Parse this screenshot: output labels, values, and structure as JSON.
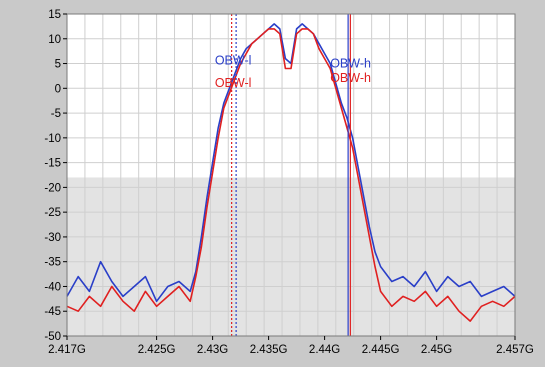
{
  "chart_data": {
    "type": "line",
    "title": "",
    "xlabel": "",
    "ylabel": "",
    "xlim": [
      2.417,
      2.457
    ],
    "ylim": [
      -50,
      15
    ],
    "grid": true,
    "x_ticks": [
      2.417,
      2.425,
      2.43,
      2.435,
      2.44,
      2.445,
      2.45,
      2.457
    ],
    "x_tick_labels": [
      "2.417G",
      "2.425G",
      "2.43G",
      "2.435G",
      "2.44G",
      "2.445G",
      "2.45G",
      "2.457G"
    ],
    "y_ticks": [
      15,
      10,
      5,
      0,
      -5,
      -10,
      -15,
      -20,
      -25,
      -30,
      -35,
      -40,
      -45,
      -50
    ],
    "y_tick_labels": [
      "15",
      "10",
      "5",
      "0",
      "-5",
      "-10",
      "-15",
      "-20",
      "-25",
      "-30",
      "-35",
      "-40",
      "-45",
      "-50"
    ],
    "series": [
      {
        "color": "#2a3fc8",
        "x": [
          2.417,
          2.418,
          2.419,
          2.42,
          2.421,
          2.422,
          2.423,
          2.424,
          2.425,
          2.426,
          2.427,
          2.428,
          2.4285,
          2.429,
          2.4295,
          2.43,
          2.4305,
          2.431,
          2.4315,
          2.432,
          2.4325,
          2.433,
          2.4335,
          2.434,
          2.4345,
          2.435,
          2.4355,
          2.436,
          2.4365,
          2.437,
          2.4375,
          2.438,
          2.4385,
          2.439,
          2.4395,
          2.44,
          2.4405,
          2.441,
          2.4415,
          2.442,
          2.4425,
          2.443,
          2.4435,
          2.444,
          2.4445,
          2.445,
          2.446,
          2.447,
          2.448,
          2.449,
          2.45,
          2.451,
          2.452,
          2.453,
          2.454,
          2.455,
          2.456,
          2.457
        ],
        "y": [
          -42,
          -38,
          -41,
          -35,
          -39,
          -42,
          -40,
          -38,
          -43,
          -40,
          -39,
          -41,
          -37,
          -30,
          -22,
          -15,
          -8,
          -3,
          0,
          3,
          6,
          8,
          9,
          10,
          11,
          12,
          13,
          12,
          6,
          5,
          12,
          13,
          12,
          11,
          9,
          7,
          5,
          1,
          -3,
          -6,
          -10,
          -16,
          -22,
          -28,
          -33,
          -36,
          -39,
          -38,
          -40,
          -37,
          -41,
          -38,
          -40,
          -39,
          -42,
          -41,
          -40,
          -42
        ]
      },
      {
        "color": "#e02020",
        "x": [
          2.417,
          2.418,
          2.419,
          2.42,
          2.421,
          2.422,
          2.423,
          2.424,
          2.425,
          2.426,
          2.427,
          2.428,
          2.4285,
          2.429,
          2.4295,
          2.43,
          2.4305,
          2.431,
          2.4315,
          2.432,
          2.4325,
          2.433,
          2.4335,
          2.434,
          2.4345,
          2.435,
          2.4355,
          2.436,
          2.4365,
          2.437,
          2.4375,
          2.438,
          2.4385,
          2.439,
          2.4395,
          2.44,
          2.4405,
          2.441,
          2.4415,
          2.442,
          2.4425,
          2.443,
          2.4435,
          2.444,
          2.4445,
          2.445,
          2.446,
          2.447,
          2.448,
          2.449,
          2.45,
          2.451,
          2.452,
          2.453,
          2.454,
          2.455,
          2.456,
          2.457
        ],
        "y": [
          -44,
          -45,
          -42,
          -44,
          -40,
          -43,
          -45,
          -41,
          -44,
          -42,
          -40,
          -43,
          -38,
          -32,
          -24,
          -17,
          -10,
          -4,
          -1,
          2,
          5,
          7,
          9,
          10,
          11,
          12,
          12,
          11,
          4,
          4,
          11,
          12,
          12,
          11,
          8,
          6,
          4,
          0,
          -4,
          -8,
          -12,
          -18,
          -24,
          -30,
          -36,
          -41,
          -44,
          -42,
          -43,
          -41,
          -44,
          -42,
          -45,
          -47,
          -44,
          -43,
          -44,
          -42
        ]
      }
    ],
    "markers": [
      {
        "label": "OBW-l",
        "x": 2.4317,
        "color": "#e02020",
        "style": "dotted"
      },
      {
        "label": "OBW-l",
        "x": 2.4321,
        "color": "#2a3fc8",
        "style": "dotted"
      },
      {
        "label": "OBW-h",
        "x": 2.4421,
        "color": "#2a3fc8",
        "style": "solid"
      },
      {
        "label": "OBW-h",
        "x": 2.4423,
        "color": "#e02020",
        "style": "solid"
      }
    ],
    "marker_label_values": [
      {
        "label": "OBW-l",
        "color": "#2a3fc8",
        "x": 2.4302,
        "y": 4.8
      },
      {
        "label": "OBW-l",
        "color": "#e02020",
        "x": 2.4302,
        "y": 0.3
      },
      {
        "label": "OBW-h",
        "color": "#2a3fc8",
        "x": 2.4405,
        "y": 4.2
      },
      {
        "label": "OBW-h",
        "color": "#e02020",
        "x": 2.4405,
        "y": 1.3
      }
    ],
    "colors": {
      "plot_background": "#ffffff",
      "lower_band": "#e3e3e3",
      "panel": "#c9c9c9",
      "grid": "#cfcfcf"
    }
  }
}
